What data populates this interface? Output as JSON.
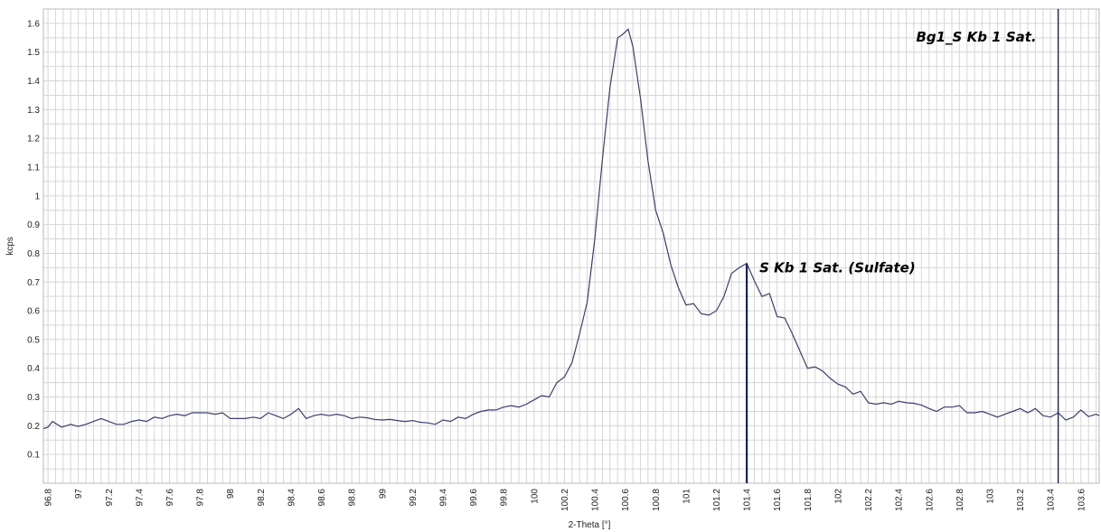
{
  "chart_data": {
    "type": "line",
    "xlabel": "2-Theta [°]",
    "ylabel": "kcps",
    "xlim": [
      96.77,
      103.72
    ],
    "ylim": [
      0.0,
      1.65
    ],
    "grid": true,
    "x_ticks": [
      "96.8",
      "97",
      "97.2",
      "97.4",
      "97.6",
      "97.8",
      "98",
      "98.2",
      "98.4",
      "98.6",
      "98.8",
      "99",
      "99.2",
      "99.4",
      "99.6",
      "99.8",
      "100",
      "100.2",
      "100.4",
      "100.6",
      "100.8",
      "101",
      "101.2",
      "101.4",
      "101.6",
      "101.8",
      "102",
      "102.2",
      "102.4",
      "102.6",
      "102.8",
      "103",
      "103.2",
      "103.4",
      "103.6"
    ],
    "y_ticks": [
      "0.1",
      "0.2",
      "0.3",
      "0.4",
      "0.5",
      "0.6",
      "0.7",
      "0.8",
      "0.9",
      "1",
      "1.1",
      "1.2",
      "1.3",
      "1.4",
      "1.5",
      "1.6"
    ],
    "colors": {
      "line": "#3a3f6e",
      "marker": "#1a2350",
      "grid": "#d6d6d6"
    },
    "series": [
      {
        "x": [
          96.77,
          96.8,
          96.83,
          96.86,
          96.89,
          96.92,
          96.95,
          96.98,
          97.0,
          97.05,
          97.1,
          97.15,
          97.2,
          97.25,
          97.3,
          97.35,
          97.4,
          97.45,
          97.5,
          97.55,
          97.6,
          97.65,
          97.7,
          97.75,
          97.8,
          97.85,
          97.9,
          97.95,
          98.0,
          98.05,
          98.1,
          98.15,
          98.2,
          98.25,
          98.3,
          98.35,
          98.4,
          98.45,
          98.5,
          98.55,
          98.6,
          98.65,
          98.7,
          98.75,
          98.8,
          98.85,
          98.9,
          98.95,
          99.0,
          99.05,
          99.1,
          99.15,
          99.2,
          99.25,
          99.3,
          99.35,
          99.4,
          99.45,
          99.5,
          99.55,
          99.6,
          99.65,
          99.7,
          99.75,
          99.8,
          99.85,
          99.9,
          99.95,
          100.0,
          100.05,
          100.1,
          100.15,
          100.2,
          100.25,
          100.3,
          100.35,
          100.4,
          100.45,
          100.5,
          100.55,
          100.58,
          100.62,
          100.65,
          100.7,
          100.75,
          100.8,
          100.85,
          100.9,
          100.95,
          101.0,
          101.05,
          101.1,
          101.15,
          101.2,
          101.25,
          101.3,
          101.35,
          101.4,
          101.45,
          101.5,
          101.55,
          101.6,
          101.65,
          101.7,
          101.75,
          101.8,
          101.85,
          101.9,
          101.95,
          102.0,
          102.05,
          102.1,
          102.15,
          102.2,
          102.25,
          102.3,
          102.35,
          102.4,
          102.45,
          102.5,
          102.55,
          102.6,
          102.65,
          102.7,
          102.75,
          102.8,
          102.85,
          102.9,
          102.95,
          103.0,
          103.05,
          103.1,
          103.15,
          103.2,
          103.25,
          103.3,
          103.35,
          103.4,
          103.45,
          103.5,
          103.55,
          103.6,
          103.65,
          103.7,
          103.72
        ],
        "values": [
          0.19,
          0.195,
          0.215,
          0.205,
          0.195,
          0.2,
          0.205,
          0.2,
          0.198,
          0.205,
          0.215,
          0.225,
          0.215,
          0.205,
          0.205,
          0.215,
          0.22,
          0.215,
          0.23,
          0.225,
          0.235,
          0.24,
          0.235,
          0.245,
          0.245,
          0.245,
          0.24,
          0.245,
          0.225,
          0.225,
          0.225,
          0.23,
          0.225,
          0.245,
          0.235,
          0.225,
          0.24,
          0.26,
          0.225,
          0.235,
          0.24,
          0.235,
          0.24,
          0.235,
          0.225,
          0.23,
          0.228,
          0.222,
          0.22,
          0.222,
          0.218,
          0.215,
          0.218,
          0.212,
          0.21,
          0.205,
          0.22,
          0.215,
          0.23,
          0.225,
          0.24,
          0.25,
          0.255,
          0.255,
          0.265,
          0.27,
          0.265,
          0.275,
          0.29,
          0.305,
          0.3,
          0.35,
          0.37,
          0.42,
          0.52,
          0.63,
          0.85,
          1.13,
          1.38,
          1.55,
          1.56,
          1.58,
          1.52,
          1.34,
          1.12,
          0.95,
          0.87,
          0.76,
          0.68,
          0.62,
          0.625,
          0.59,
          0.585,
          0.6,
          0.65,
          0.73,
          0.75,
          0.765,
          0.705,
          0.65,
          0.66,
          0.58,
          0.575,
          0.52,
          0.46,
          0.4,
          0.405,
          0.39,
          0.365,
          0.345,
          0.335,
          0.31,
          0.32,
          0.28,
          0.275,
          0.28,
          0.275,
          0.285,
          0.28,
          0.278,
          0.272,
          0.26,
          0.25,
          0.265,
          0.265,
          0.27,
          0.245,
          0.245,
          0.25,
          0.24,
          0.23,
          0.24,
          0.25,
          0.26,
          0.245,
          0.26,
          0.235,
          0.23,
          0.245,
          0.22,
          0.23,
          0.255,
          0.232,
          0.24,
          0.235
        ]
      }
    ],
    "markers": [
      {
        "x": 101.4,
        "y_top": 0.765,
        "label": "S Kb 1 Sat. (Sulfate)"
      },
      {
        "x": 103.45,
        "y_top": 1.65,
        "label": "Bg1_S Kb 1 Sat."
      }
    ]
  }
}
